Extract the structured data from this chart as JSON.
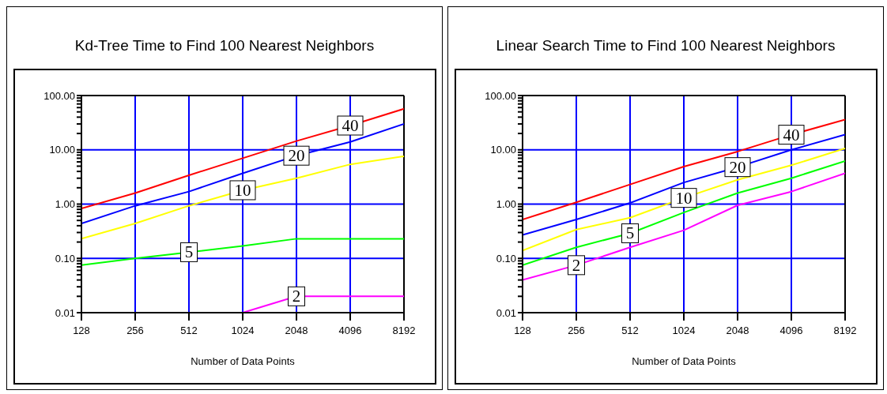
{
  "chart_data": [
    {
      "type": "line",
      "title": "Kd-Tree Time to Find 100 Nearest Neighbors",
      "xlabel": "Number of Data Points",
      "log": "xy",
      "grid": true,
      "legend": false,
      "marker": "none",
      "line_style": "solid",
      "x": [
        128,
        256,
        512,
        1024,
        2048,
        4096,
        8192
      ],
      "xlim": [
        128,
        8192
      ],
      "xticks": [
        128,
        256,
        512,
        1024,
        2048,
        4096,
        8192
      ],
      "ylim": [
        0.01,
        100
      ],
      "yticks": [
        {
          "value": 0.01,
          "label": "0.01"
        },
        {
          "value": 0.02,
          "label": null
        },
        {
          "value": 0.03,
          "label": null
        },
        {
          "value": 0.04,
          "label": null
        },
        {
          "value": 0.05,
          "label": null
        },
        {
          "value": 0.06,
          "label": null
        },
        {
          "value": 0.07,
          "label": null
        },
        {
          "value": 0.08,
          "label": null
        },
        {
          "value": 0.09,
          "label": null
        },
        {
          "value": 0.1,
          "label": "0.10"
        },
        {
          "value": 0.2,
          "label": null
        },
        {
          "value": 0.3,
          "label": null
        },
        {
          "value": 0.4,
          "label": null
        },
        {
          "value": 0.5,
          "label": null
        },
        {
          "value": 0.6,
          "label": null
        },
        {
          "value": 0.7,
          "label": null
        },
        {
          "value": 0.8,
          "label": null
        },
        {
          "value": 0.9,
          "label": null
        },
        {
          "value": 1,
          "label": "1.00"
        },
        {
          "value": 2,
          "label": null
        },
        {
          "value": 3,
          "label": null
        },
        {
          "value": 4,
          "label": null
        },
        {
          "value": 5,
          "label": null
        },
        {
          "value": 6,
          "label": null
        },
        {
          "value": 7,
          "label": null
        },
        {
          "value": 8,
          "label": null
        },
        {
          "value": 9,
          "label": null
        },
        {
          "value": 10,
          "label": "10.00"
        },
        {
          "value": 20,
          "label": null
        },
        {
          "value": 30,
          "label": null
        },
        {
          "value": 40,
          "label": null
        },
        {
          "value": 50,
          "label": null
        },
        {
          "value": 60,
          "label": null
        },
        {
          "value": 70,
          "label": null
        },
        {
          "value": 80,
          "label": null
        },
        {
          "value": 90,
          "label": null
        },
        {
          "value": 100,
          "label": "100.00"
        }
      ],
      "series": [
        {
          "name": "2",
          "color": "#ff00ff",
          "values": [
            null,
            null,
            null,
            0.01,
            0.02,
            0.02,
            0.02
          ]
        },
        {
          "name": "5",
          "color": "#00ff00",
          "values": [
            0.075,
            0.1,
            0.13,
            0.17,
            0.23,
            0.23,
            0.23
          ]
        },
        {
          "name": "10",
          "color": "#ffff00",
          "values": [
            0.23,
            0.44,
            0.93,
            1.8,
            3,
            5.4,
            7.6
          ]
        },
        {
          "name": "20",
          "color": "#0000ff",
          "values": [
            0.44,
            0.93,
            1.7,
            3.7,
            7.8,
            14,
            30
          ]
        },
        {
          "name": "40",
          "color": "#ff0000",
          "values": [
            0.83,
            1.6,
            3.4,
            7,
            14.5,
            28,
            57
          ]
        }
      ]
    },
    {
      "type": "line",
      "title": "Linear Search Time to Find 100 Nearest Neighbors",
      "xlabel": "Number of Data Points",
      "log": "xy",
      "grid": true,
      "legend": false,
      "marker": "none",
      "line_style": "solid",
      "x": [
        128,
        256,
        512,
        1024,
        2048,
        4096,
        8192
      ],
      "xlim": [
        128,
        8192
      ],
      "xticks": [
        128,
        256,
        512,
        1024,
        2048,
        4096,
        8192
      ],
      "ylim": [
        0.01,
        100
      ],
      "yticks": [
        {
          "value": 0.01,
          "label": "0.01"
        },
        {
          "value": 0.02,
          "label": null
        },
        {
          "value": 0.03,
          "label": null
        },
        {
          "value": 0.04,
          "label": null
        },
        {
          "value": 0.05,
          "label": null
        },
        {
          "value": 0.06,
          "label": null
        },
        {
          "value": 0.07,
          "label": null
        },
        {
          "value": 0.08,
          "label": null
        },
        {
          "value": 0.09,
          "label": null
        },
        {
          "value": 0.1,
          "label": "0.10"
        },
        {
          "value": 0.2,
          "label": null
        },
        {
          "value": 0.3,
          "label": null
        },
        {
          "value": 0.4,
          "label": null
        },
        {
          "value": 0.5,
          "label": null
        },
        {
          "value": 0.6,
          "label": null
        },
        {
          "value": 0.7,
          "label": null
        },
        {
          "value": 0.8,
          "label": null
        },
        {
          "value": 0.9,
          "label": null
        },
        {
          "value": 1,
          "label": "1.00"
        },
        {
          "value": 2,
          "label": null
        },
        {
          "value": 3,
          "label": null
        },
        {
          "value": 4,
          "label": null
        },
        {
          "value": 5,
          "label": null
        },
        {
          "value": 6,
          "label": null
        },
        {
          "value": 7,
          "label": null
        },
        {
          "value": 8,
          "label": null
        },
        {
          "value": 9,
          "label": null
        },
        {
          "value": 10,
          "label": "10.00"
        },
        {
          "value": 20,
          "label": null
        },
        {
          "value": 30,
          "label": null
        },
        {
          "value": 40,
          "label": null
        },
        {
          "value": 50,
          "label": null
        },
        {
          "value": 60,
          "label": null
        },
        {
          "value": 70,
          "label": null
        },
        {
          "value": 80,
          "label": null
        },
        {
          "value": 90,
          "label": null
        },
        {
          "value": 100,
          "label": "100.00"
        }
      ],
      "series": [
        {
          "name": "2",
          "color": "#ff00ff",
          "values": [
            0.04,
            0.075,
            0.16,
            0.33,
            0.95,
            1.7,
            3.7
          ]
        },
        {
          "name": "5",
          "color": "#00ff00",
          "values": [
            0.075,
            0.16,
            0.29,
            0.7,
            1.6,
            3,
            6.2
          ]
        },
        {
          "name": "10",
          "color": "#ffff00",
          "values": [
            0.14,
            0.34,
            0.56,
            1.3,
            2.8,
            5.2,
            10.6
          ]
        },
        {
          "name": "20",
          "color": "#0000ff",
          "values": [
            0.27,
            0.52,
            1.05,
            2.5,
            4.8,
            10,
            19
          ]
        },
        {
          "name": "40",
          "color": "#ff0000",
          "values": [
            0.52,
            1.08,
            2.3,
            4.9,
            9.3,
            19,
            36
          ]
        }
      ]
    }
  ]
}
